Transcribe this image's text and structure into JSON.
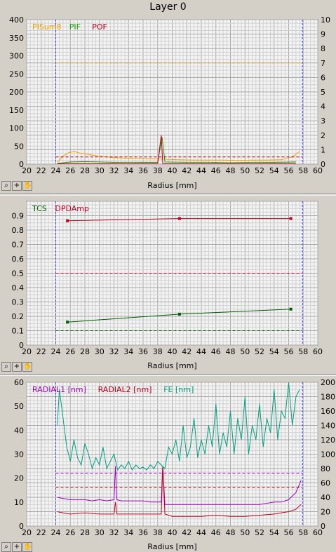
{
  "window_title": "Layer 0",
  "toolbar_icons": [
    "zoom-icon",
    "crosshair-icon",
    "hand-icon"
  ],
  "colors": {
    "PISum8": "#f0a000",
    "PIF": "#20a000",
    "POF": "#c00020",
    "TCS": "#006000",
    "DPDAmp": "#c00020",
    "RADIAL1": "#a000c0",
    "RADIAL2": "#c00020",
    "FE": "#00a080",
    "boundary": "#4040ff"
  },
  "chart_data": [
    {
      "type": "line",
      "xlabel": "Radius [mm]",
      "xlim": [
        20,
        60
      ],
      "xticks": [
        20,
        22,
        24,
        26,
        28,
        30,
        32,
        34,
        36,
        38,
        40,
        42,
        44,
        46,
        48,
        50,
        52,
        54,
        56,
        58,
        60
      ],
      "ylim": [
        0,
        400
      ],
      "yticks": [
        0,
        50,
        100,
        150,
        200,
        250,
        300,
        350,
        400
      ],
      "y2lim": [
        0,
        10
      ],
      "y2ticks": [
        0,
        1,
        2,
        3,
        4,
        5,
        6,
        7,
        8,
        9,
        10
      ],
      "grid": true,
      "legend_position": "top-left",
      "boundaries": [
        24,
        57.9
      ],
      "series": [
        {
          "name": "PISum8",
          "axis": "left",
          "x": [
            24.2,
            25,
            25.8,
            26.6,
            27.4,
            28.2,
            29,
            30,
            31,
            32,
            33,
            34,
            35,
            36,
            37,
            38,
            38.6,
            39.5,
            41,
            43,
            45,
            47,
            49,
            51,
            53,
            55,
            56.5,
            57.5
          ],
          "values": [
            5,
            22,
            32,
            35,
            30,
            28,
            25,
            22,
            20,
            18,
            17,
            16,
            16,
            15,
            15,
            14,
            14,
            13,
            12,
            11,
            11,
            11,
            10,
            11,
            11,
            12,
            20,
            35
          ]
        },
        {
          "name": "PIF",
          "axis": "left",
          "x": [
            24.2,
            26,
            28,
            30,
            32,
            34,
            36,
            38,
            38.6,
            39,
            42,
            45,
            48,
            51,
            54,
            57
          ],
          "values": [
            2,
            6,
            7,
            6,
            5,
            5,
            5,
            5,
            75,
            6,
            5,
            5,
            4,
            5,
            5,
            6
          ]
        },
        {
          "name": "POF",
          "axis": "left",
          "x": [
            24.2,
            26,
            28,
            30,
            32,
            34,
            36,
            38,
            38.5,
            38.7,
            39,
            42,
            45,
            48,
            51,
            54,
            57
          ],
          "values": [
            1,
            2,
            2,
            1,
            2,
            1,
            2,
            2,
            80,
            2,
            1,
            1,
            1,
            1,
            1,
            2,
            2
          ]
        },
        {
          "name": "PISum8 limit",
          "axis": "left",
          "x": [
            24,
            57.9
          ],
          "values": [
            280,
            280
          ],
          "dashed": true,
          "colorKey": "PISum8"
        },
        {
          "name": "POF limit",
          "axis": "left",
          "x": [
            24,
            57.9
          ],
          "values": [
            20,
            20
          ],
          "dashed": true,
          "colorKey": "POF"
        }
      ]
    },
    {
      "type": "line",
      "xlabel": "Radius [mm]",
      "xlim": [
        20,
        60
      ],
      "xticks": [
        20,
        22,
        24,
        26,
        28,
        30,
        32,
        34,
        36,
        38,
        40,
        42,
        44,
        46,
        48,
        50,
        52,
        54,
        56,
        58,
        60
      ],
      "ylim": [
        0,
        1.0
      ],
      "yticks": [
        0,
        0.1,
        0.2,
        0.3,
        0.4,
        0.5,
        0.6,
        0.7,
        0.8,
        0.9
      ],
      "grid": true,
      "legend_position": "top-left",
      "boundaries": [
        24,
        57.9
      ],
      "series": [
        {
          "name": "TCS",
          "axis": "left",
          "x": [
            25.6,
            41,
            56.3
          ],
          "values": [
            0.16,
            0.215,
            0.25
          ],
          "markers": true
        },
        {
          "name": "DPDAmp",
          "axis": "left",
          "x": [
            25.6,
            41,
            56.3
          ],
          "values": [
            0.865,
            0.88,
            0.88
          ],
          "markers": true
        },
        {
          "name": "TCS limit",
          "axis": "left",
          "x": [
            24,
            57.9
          ],
          "values": [
            0.1,
            0.1
          ],
          "dashed": true,
          "colorKey": "TCS"
        },
        {
          "name": "DPDAmp limit",
          "axis": "left",
          "x": [
            24,
            57.9
          ],
          "values": [
            0.5,
            0.5
          ],
          "dashed": true,
          "colorKey": "DPDAmp"
        }
      ]
    },
    {
      "type": "line",
      "xlabel": "Radius [mm]",
      "xlim": [
        20,
        60
      ],
      "xticks": [
        20,
        22,
        24,
        26,
        28,
        30,
        32,
        34,
        36,
        38,
        40,
        42,
        44,
        46,
        48,
        50,
        52,
        54,
        56,
        58,
        60
      ],
      "ylim": [
        0,
        60
      ],
      "yticks": [
        0,
        10,
        20,
        30,
        40,
        50,
        60
      ],
      "y2lim": [
        0,
        200
      ],
      "y2ticks": [
        0,
        20,
        40,
        60,
        80,
        100,
        120,
        140,
        160,
        180,
        200
      ],
      "grid": true,
      "legend_position": "top-left",
      "boundaries": [
        24,
        57.9
      ],
      "series": [
        {
          "name": "RADIAL1 [nm]",
          "axis": "left",
          "x": [
            24.2,
            25,
            26,
            27,
            28,
            29,
            30,
            31,
            32,
            32.2,
            32.4,
            33,
            34,
            35,
            36,
            37,
            38,
            38.5,
            38.7,
            39,
            40,
            42,
            44,
            46,
            48,
            50,
            52,
            54,
            55,
            56,
            57,
            57.7
          ],
          "values": [
            12,
            11.5,
            11,
            11,
            11,
            10.5,
            11,
            10.5,
            11,
            25,
            11,
            10.5,
            10.5,
            10.5,
            10.5,
            10,
            10,
            10,
            25,
            9,
            9,
            9,
            9,
            9,
            9,
            9,
            9,
            10,
            10,
            11,
            14,
            19
          ]
        },
        {
          "name": "RADIAL2 [nm]",
          "axis": "left",
          "x": [
            24.2,
            25,
            26,
            28,
            30,
            32,
            32.2,
            32.4,
            33,
            35,
            37,
            38.5,
            38.7,
            39,
            40,
            42,
            44,
            46,
            48,
            50,
            52,
            54,
            56,
            57,
            57.7
          ],
          "values": [
            6,
            5.5,
            5,
            5.5,
            5,
            5,
            10,
            5,
            5,
            5,
            5,
            5,
            25,
            5,
            4,
            4,
            4,
            4.5,
            4,
            4,
            4.5,
            5,
            6,
            7,
            9
          ]
        },
        {
          "name": "FE [nm]",
          "axis": "right",
          "x": [
            24.2,
            24.5,
            25,
            25.5,
            26,
            26.5,
            27,
            27.5,
            28,
            28.5,
            29,
            29.5,
            30,
            30.5,
            31,
            31.5,
            32,
            32.5,
            33,
            33.5,
            34,
            34.5,
            35,
            35.5,
            36,
            36.5,
            37,
            37.5,
            38,
            38.5,
            39,
            39.5,
            40,
            40.5,
            41,
            41.5,
            42,
            42.5,
            43,
            43.5,
            44,
            44.5,
            45,
            45.5,
            46,
            46.5,
            47,
            47.5,
            48,
            48.5,
            49,
            49.5,
            50,
            50.5,
            51,
            51.5,
            52,
            52.5,
            53,
            53.5,
            54,
            54.5,
            55,
            55.5,
            56,
            56.5,
            57,
            57.5
          ],
          "values": [
            140,
            190,
            150,
            110,
            90,
            120,
            95,
            85,
            115,
            100,
            80,
            95,
            85,
            110,
            80,
            90,
            100,
            78,
            85,
            80,
            90,
            78,
            85,
            80,
            82,
            78,
            85,
            80,
            90,
            85,
            80,
            110,
            100,
            120,
            90,
            140,
            95,
            110,
            150,
            95,
            120,
            100,
            140,
            110,
            170,
            100,
            130,
            110,
            160,
            100,
            150,
            120,
            180,
            100,
            140,
            120,
            170,
            110,
            150,
            130,
            190,
            120,
            160,
            150,
            200,
            140,
            180,
            190
          ]
        },
        {
          "name": "RADIAL1 limit",
          "axis": "left",
          "x": [
            24,
            57.9
          ],
          "values": [
            22,
            22
          ],
          "dashed": true,
          "colorKey": "RADIAL1"
        },
        {
          "name": "RADIAL2 limit",
          "axis": "left",
          "x": [
            24,
            57.9
          ],
          "values": [
            16,
            16
          ],
          "dashed": true,
          "colorKey": "RADIAL2"
        }
      ]
    }
  ],
  "legends": [
    [
      {
        "label": "PISum8",
        "colorKey": "PISum8"
      },
      {
        "label": "PIF",
        "colorKey": "PIF"
      },
      {
        "label": "POF",
        "colorKey": "POF"
      }
    ],
    [
      {
        "label": "TCS",
        "colorKey": "TCS"
      },
      {
        "label": "DPDAmp",
        "colorKey": "DPDAmp"
      }
    ],
    [
      {
        "label": "RADIAL1 [nm]",
        "colorKey": "RADIAL1"
      },
      {
        "label": "RADIAL2 [nm]",
        "colorKey": "RADIAL2"
      },
      {
        "label": "FE [nm]",
        "colorKey": "FE"
      }
    ]
  ]
}
